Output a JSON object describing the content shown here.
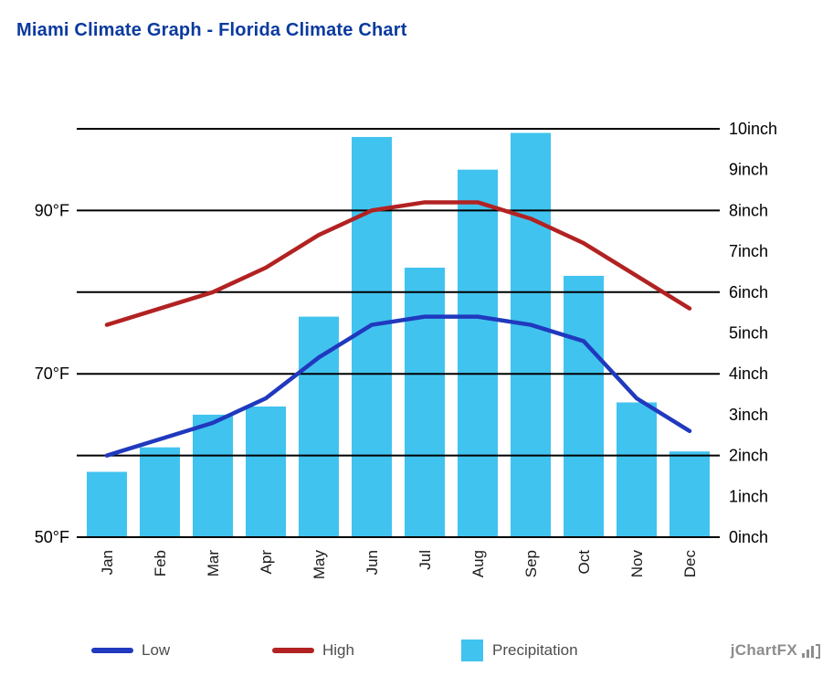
{
  "title": "Miami Climate Graph - Florida Climate Chart",
  "watermark": "jChartFX",
  "colors": {
    "title": "#0A3A9E",
    "low_line": "#2039BE",
    "high_line": "#B22222",
    "precipitation_bar": "#41C3EF",
    "gridline": "#000000",
    "tick_text": "#000000",
    "legend_text": "#4D4D4D",
    "watermark_text": "#8D8D8D"
  },
  "legend": {
    "items": [
      {
        "label": "Low",
        "type": "line",
        "color": "#2039BE"
      },
      {
        "label": "High",
        "type": "line",
        "color": "#B22222"
      },
      {
        "label": "Precipitation",
        "type": "square",
        "color": "#41C3EF"
      }
    ]
  },
  "chart_data": {
    "type": "combo-bar-line",
    "title": "Miami Climate Graph - Florida Climate Chart",
    "categories": [
      "Jan",
      "Feb",
      "Mar",
      "Apr",
      "May",
      "Jun",
      "Jul",
      "Aug",
      "Sep",
      "Oct",
      "Nov",
      "Dec"
    ],
    "series": [
      {
        "name": "Low",
        "type": "line",
        "axis": "left",
        "unit": "°F",
        "color": "#2039BE",
        "values": [
          60,
          62,
          64,
          67,
          72,
          76,
          77,
          77,
          76,
          74,
          67,
          63
        ]
      },
      {
        "name": "High",
        "type": "line",
        "axis": "left",
        "unit": "°F",
        "color": "#B22222",
        "values": [
          76,
          78,
          80,
          83,
          87,
          90,
          91,
          91,
          89,
          86,
          82,
          78
        ]
      },
      {
        "name": "Precipitation",
        "type": "bar",
        "axis": "right",
        "unit": "inch",
        "color": "#41C3EF",
        "values": [
          1.6,
          2.2,
          3.0,
          3.2,
          5.4,
          9.8,
          6.6,
          9.0,
          9.9,
          6.4,
          3.3,
          2.1
        ]
      }
    ],
    "left_axis": {
      "unit": "°F",
      "range": [
        50,
        100
      ],
      "ticks": [
        50,
        70,
        90
      ],
      "tick_labels": [
        "50°F",
        "70°F",
        "90°F"
      ]
    },
    "right_axis": {
      "unit": "inch",
      "range": [
        0,
        10
      ],
      "ticks": [
        0,
        1,
        2,
        3,
        4,
        5,
        6,
        7,
        8,
        9,
        10
      ],
      "tick_labels": [
        "0inch",
        "1inch",
        "2inch",
        "3inch",
        "4inch",
        "5inch",
        "6inch",
        "7inch",
        "8inch",
        "9inch",
        "10inch"
      ]
    },
    "gridlines_at": [
      0,
      2,
      4,
      6,
      8,
      10
    ],
    "grid": true,
    "legend_position": "bottom",
    "category_label_rotation": -90
  }
}
